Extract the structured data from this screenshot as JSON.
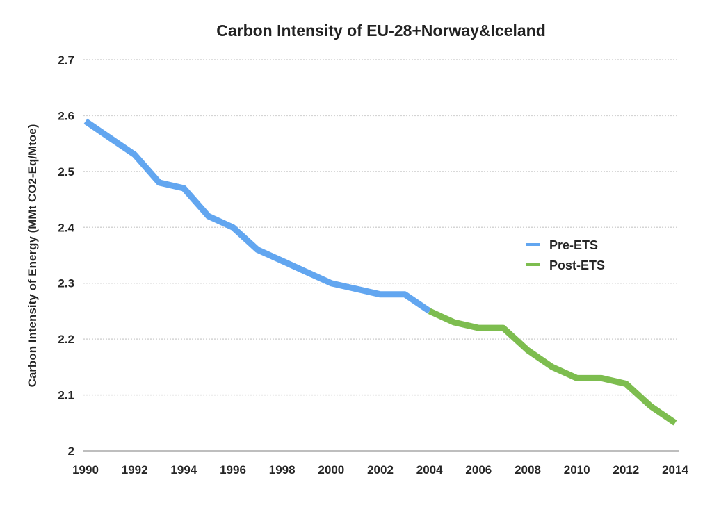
{
  "chart_data": {
    "type": "line",
    "title": "Carbon Intensity of EU-28+Norway&Iceland",
    "xlabel": "",
    "ylabel": "Carbon Intensity of Energy (MMt CO2-Eq/Mtoe)",
    "xlim": [
      1990,
      2014
    ],
    "ylim": [
      2.0,
      2.7
    ],
    "grid": true,
    "legend": "right-center",
    "x_ticks": [
      "1990",
      "1992",
      "1994",
      "1996",
      "1998",
      "2000",
      "2002",
      "2004",
      "2006",
      "2008",
      "2010",
      "2012",
      "2014"
    ],
    "x_tick_values": [
      1990,
      1992,
      1994,
      1996,
      1998,
      2000,
      2002,
      2004,
      2006,
      2008,
      2010,
      2012,
      2014
    ],
    "y_ticks": [
      "2",
      "2.1",
      "2.2",
      "2.3",
      "2.4",
      "2.5",
      "2.6",
      "2.7"
    ],
    "y_tick_values": [
      2.0,
      2.1,
      2.2,
      2.3,
      2.4,
      2.5,
      2.6,
      2.7
    ],
    "series": [
      {
        "name": "Pre-ETS",
        "color": "#62a6f0",
        "x": [
          1990,
          1991,
          1992,
          1993,
          1994,
          1995,
          1996,
          1997,
          1998,
          1999,
          2000,
          2001,
          2002,
          2003,
          2004
        ],
        "values": [
          2.59,
          2.56,
          2.53,
          2.48,
          2.47,
          2.42,
          2.4,
          2.36,
          2.34,
          2.32,
          2.3,
          2.29,
          2.28,
          2.28,
          2.25
        ]
      },
      {
        "name": "Post-ETS",
        "color": "#7dbd4f",
        "x": [
          2004,
          2005,
          2006,
          2007,
          2008,
          2009,
          2010,
          2011,
          2012,
          2013,
          2014
        ],
        "values": [
          2.25,
          2.23,
          2.22,
          2.22,
          2.18,
          2.15,
          2.13,
          2.13,
          2.12,
          2.08,
          2.05
        ]
      }
    ]
  }
}
